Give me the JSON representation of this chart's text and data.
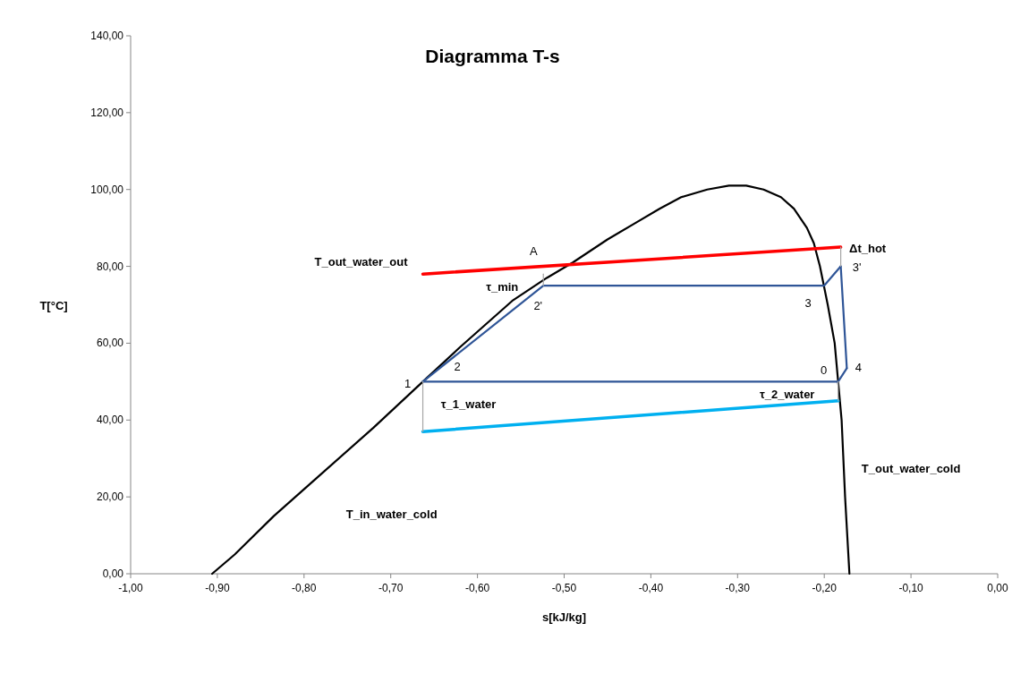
{
  "chart_data": {
    "type": "line",
    "title": "Diagramma T-s",
    "xlabel": "s[kJ/kg]",
    "ylabel": "T[°C]",
    "xlim": [
      -1,
      0
    ],
    "ylim": [
      0,
      140
    ],
    "xticks": [
      {
        "value": -1,
        "label": "-1,00"
      },
      {
        "value": -0.9,
        "label": "-0,90"
      },
      {
        "value": -0.8,
        "label": "-0,80"
      },
      {
        "value": -0.7,
        "label": "-0,70"
      },
      {
        "value": -0.6,
        "label": "-0,60"
      },
      {
        "value": -0.5,
        "label": "-0,50"
      },
      {
        "value": -0.4,
        "label": "-0,40"
      },
      {
        "value": -0.3,
        "label": "-0,30"
      },
      {
        "value": -0.2,
        "label": "-0,20"
      },
      {
        "value": -0.1,
        "label": "-0,10"
      },
      {
        "value": 0,
        "label": "0,00"
      }
    ],
    "yticks": [
      {
        "value": 0,
        "label": "0,00"
      },
      {
        "value": 20,
        "label": "20,00"
      },
      {
        "value": 40,
        "label": "40,00"
      },
      {
        "value": 60,
        "label": "60,00"
      },
      {
        "value": 80,
        "label": "80,00"
      },
      {
        "value": 100,
        "label": "100,00"
      },
      {
        "value": 120,
        "label": "120,00"
      },
      {
        "value": 140,
        "label": "140,00"
      }
    ],
    "series": [
      {
        "color": "#000000",
        "x": [
          -0.906,
          -0.88,
          -0.835,
          -0.78,
          -0.72,
          -0.663,
          -0.62,
          -0.56,
          -0.52,
          -0.49,
          -0.45,
          -0.42,
          -0.39,
          -0.365,
          -0.335,
          -0.31,
          -0.29,
          -0.27,
          -0.25,
          -0.235,
          -0.22,
          -0.212,
          -0.205,
          -0.196,
          -0.188,
          -0.184,
          -0.18,
          -0.176,
          -0.171
        ],
        "values": [
          0,
          5,
          15,
          26,
          38,
          50,
          59,
          71,
          77,
          81,
          87,
          91,
          95,
          98,
          100,
          101,
          101,
          100,
          98,
          95,
          90,
          86,
          80,
          70,
          60,
          50,
          40,
          20,
          0
        ]
      },
      {
        "color": "#ff0000",
        "x": [
          -0.663,
          -0.181
        ],
        "values": [
          78,
          85
        ]
      },
      {
        "color": "#00b0f0",
        "x": [
          -0.663,
          -0.184
        ],
        "values": [
          37,
          45
        ]
      },
      {
        "color": "#2f5597",
        "x": [
          -0.663,
          -0.524,
          -0.2,
          -0.181
        ],
        "values": [
          50,
          75,
          75,
          80
        ]
      },
      {
        "color": "#2f5597",
        "x": [
          -0.181,
          -0.174
        ],
        "values": [
          80,
          53.5
        ]
      },
      {
        "color": "#2f5597",
        "x": [
          -0.663,
          -0.184,
          -0.174
        ],
        "values": [
          50,
          50,
          53.5
        ]
      },
      {
        "color": "#a6a6a6",
        "x": [
          -0.524,
          -0.524
        ],
        "values": [
          75,
          78
        ]
      },
      {
        "color": "#a6a6a6",
        "x": [
          -0.181,
          -0.181
        ],
        "values": [
          80,
          85
        ]
      },
      {
        "color": "#a6a6a6",
        "x": [
          -0.663,
          -0.663
        ],
        "values": [
          50,
          37
        ]
      },
      {
        "color": "#a6a6a6",
        "x": [
          -0.184,
          -0.184
        ],
        "values": [
          50,
          45
        ]
      }
    ],
    "annotations": [
      {
        "text": "A",
        "x": -0.524,
        "y": 78
      },
      {
        "text": "T_out_water_out",
        "x": -0.663,
        "y": 78
      },
      {
        "text": "τ_min",
        "x": -0.524,
        "y": 76.5
      },
      {
        "text": "2'",
        "x": -0.524,
        "y": 75
      },
      {
        "text": "3",
        "x": -0.2,
        "y": 75
      },
      {
        "text": "Δt_hot",
        "x": -0.181,
        "y": 85
      },
      {
        "text": "3'",
        "x": -0.181,
        "y": 80
      },
      {
        "text": "2",
        "x": -0.62,
        "y": 57.7
      },
      {
        "text": "1",
        "x": -0.663,
        "y": 50
      },
      {
        "text": "0",
        "x": -0.184,
        "y": 50
      },
      {
        "text": "4",
        "x": -0.174,
        "y": 53.5
      },
      {
        "text": "τ_1_water",
        "x": -0.663,
        "y": 43.5
      },
      {
        "text": "τ_2_water",
        "x": -0.184,
        "y": 47.5
      },
      "T_out_water_cold",
      "T_in_water_cold"
    ]
  }
}
